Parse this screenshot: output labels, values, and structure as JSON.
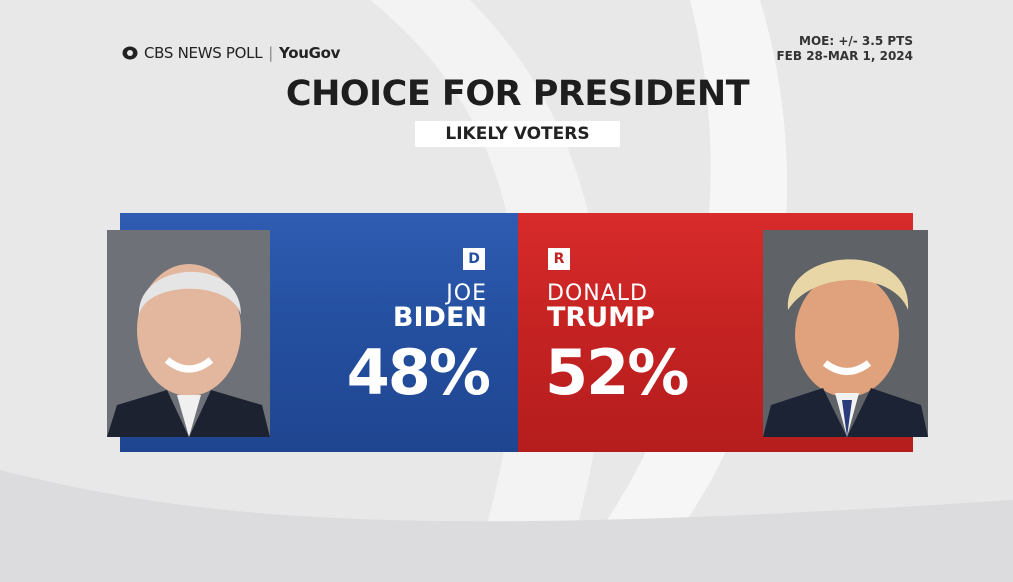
{
  "header": {
    "brand": "CBS NEWS POLL",
    "partner": "YouGov",
    "moe": "MOE: +/- 3.5 PTS",
    "dates": "FEB 28-MAR 1, 2024"
  },
  "title": "CHOICE FOR PRESIDENT",
  "subtitle": "LIKELY VOTERS",
  "candidates": [
    {
      "party": "D",
      "first": "JOE",
      "last": "BIDEN",
      "share": "48%"
    },
    {
      "party": "R",
      "first": "DONALD",
      "last": "TRUMP",
      "share": "52%"
    }
  ]
}
